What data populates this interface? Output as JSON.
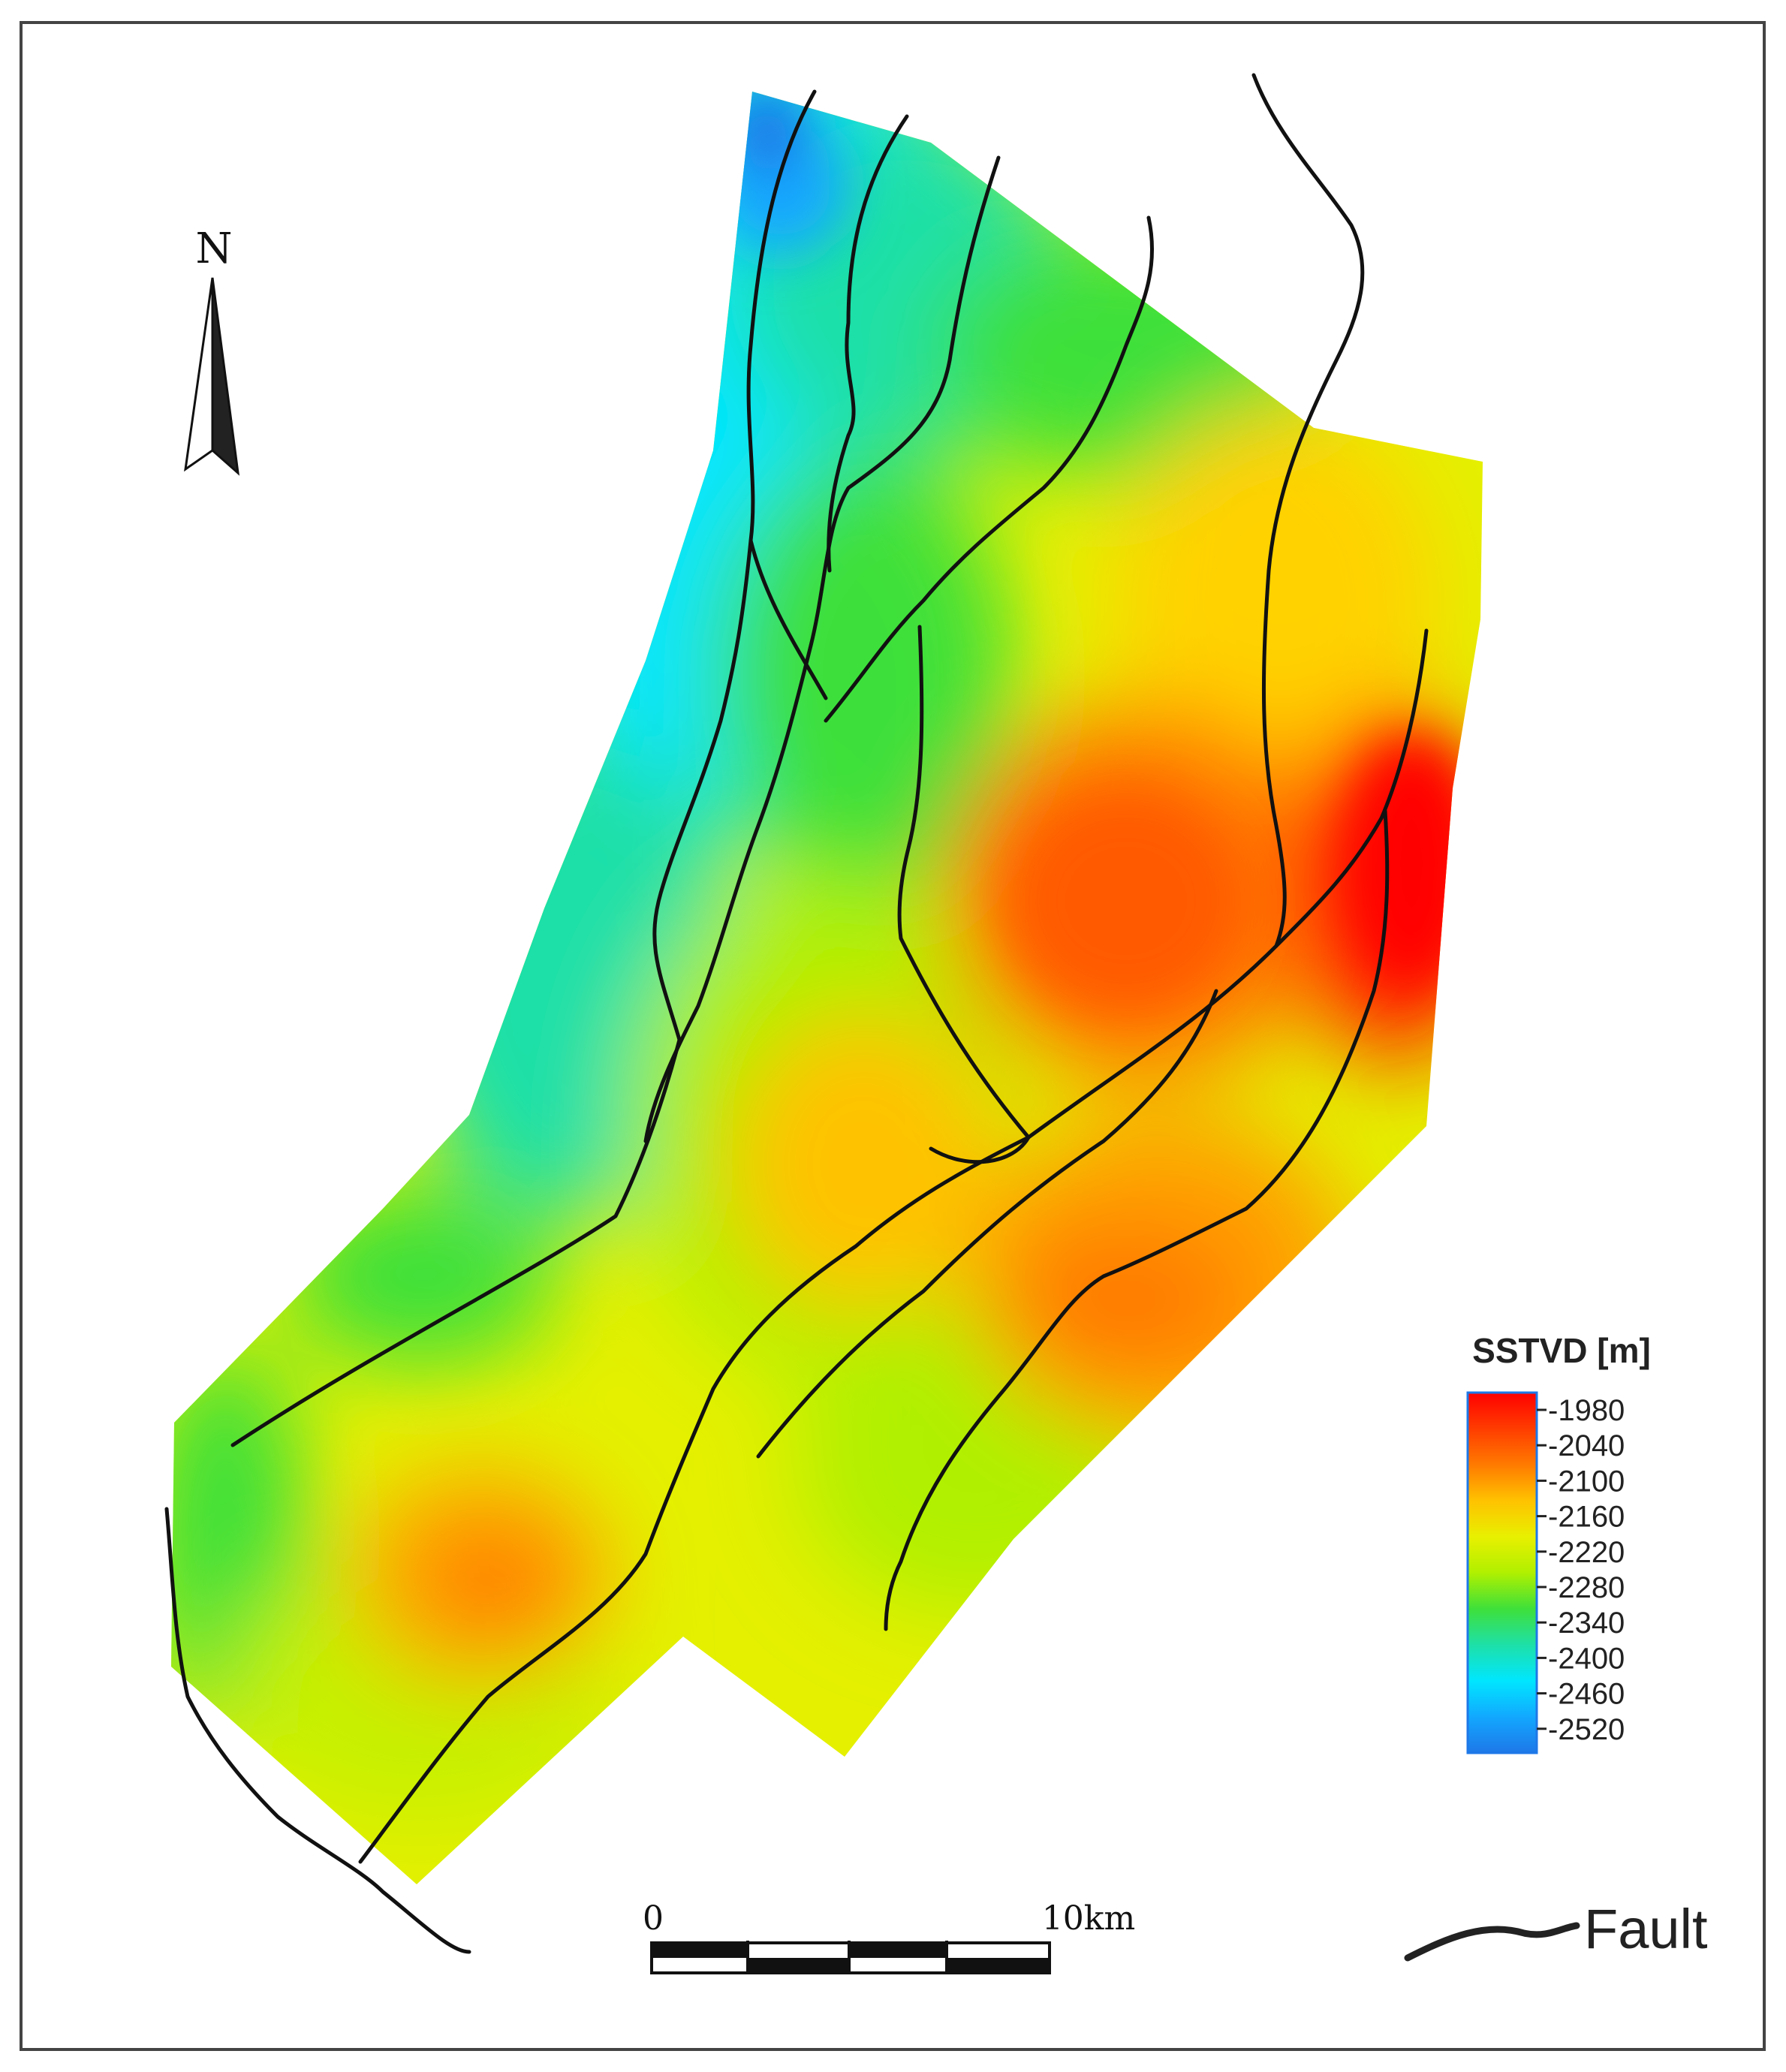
{
  "north_arrow": {
    "label": "N"
  },
  "legend": {
    "title": "SSTVD [m]",
    "ticks": [
      "-1980",
      "-2040",
      "-2100",
      "-2160",
      "-2220",
      "-2280",
      "-2340",
      "-2400",
      "-2460",
      "-2520"
    ],
    "colors": [
      "#ff0000",
      "#ff3c00",
      "#ff7a00",
      "#ffc200",
      "#e8f000",
      "#b0f000",
      "#3ee03a",
      "#1ee0a8",
      "#00e6ff",
      "#12a8ff",
      "#1e78e8"
    ]
  },
  "scale_bar": {
    "start_label": "0",
    "end_label": "10km"
  },
  "fault_legend": {
    "label": "Fault"
  },
  "colors": {
    "frame": "#444444",
    "fault": "#111111"
  }
}
